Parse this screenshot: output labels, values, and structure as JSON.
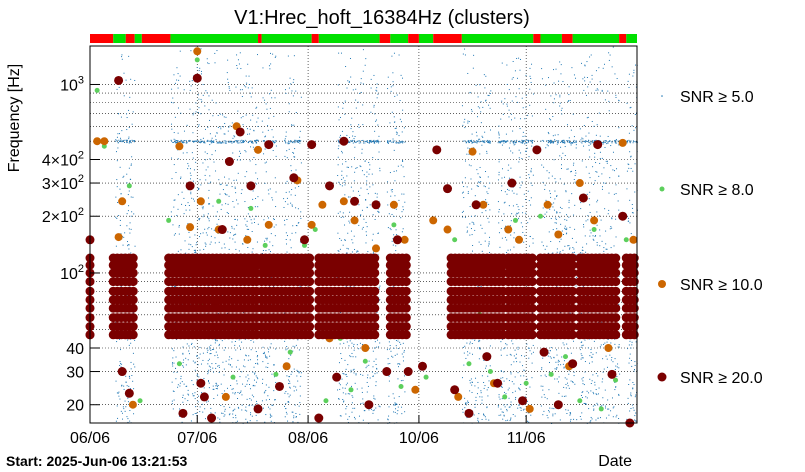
{
  "chart_data": {
    "type": "scatter",
    "title": "V1:Hrec_hoft_16384Hz (clusters)",
    "xlabel": "Date",
    "ylabel": "Frequency [Hz]",
    "ylog": true,
    "ylim": [
      16,
      1600
    ],
    "xlim": [
      0,
      153
    ],
    "x_ticks": [
      {
        "x": 0,
        "label": "06/06"
      },
      {
        "x": 30,
        "label": "07/06"
      },
      {
        "x": 61,
        "label": "08/06"
      },
      {
        "x": 92,
        "label": "10/06"
      },
      {
        "x": 122,
        "label": "11/06"
      }
    ],
    "y_ticks": [
      {
        "value": 20,
        "label": "20"
      },
      {
        "value": 30,
        "label": "30"
      },
      {
        "value": 40,
        "label": "40"
      },
      {
        "value": 100,
        "label": "10",
        "sup": "2"
      },
      {
        "value": 200,
        "label": "2×10",
        "sup": "2"
      },
      {
        "value": 300,
        "label": "3×10",
        "sup": "2"
      },
      {
        "value": 400,
        "label": "4×10",
        "sup": "2"
      },
      {
        "value": 1000,
        "label": "10",
        "sup": "3"
      }
    ],
    "start_label": "Start: 2025-Jun-06 13:21:53",
    "state_segments": [
      {
        "start": 0,
        "end": 6.5,
        "state": "off"
      },
      {
        "start": 6.5,
        "end": 10,
        "state": "on"
      },
      {
        "start": 10,
        "end": 12.5,
        "state": "off"
      },
      {
        "start": 12.5,
        "end": 14.5,
        "state": "on"
      },
      {
        "start": 14.5,
        "end": 22.5,
        "state": "off"
      },
      {
        "start": 22.5,
        "end": 47,
        "state": "on"
      },
      {
        "start": 47,
        "end": 48,
        "state": "off"
      },
      {
        "start": 48,
        "end": 62,
        "state": "on"
      },
      {
        "start": 62,
        "end": 64,
        "state": "off"
      },
      {
        "start": 64,
        "end": 81,
        "state": "on"
      },
      {
        "start": 81,
        "end": 84,
        "state": "off"
      },
      {
        "start": 84,
        "end": 89,
        "state": "on"
      },
      {
        "start": 89,
        "end": 92,
        "state": "off"
      },
      {
        "start": 92,
        "end": 96,
        "state": "on"
      },
      {
        "start": 96,
        "end": 104,
        "state": "off"
      },
      {
        "start": 104,
        "end": 124,
        "state": "on"
      },
      {
        "start": 124,
        "end": 126,
        "state": "off"
      },
      {
        "start": 126,
        "end": 132,
        "state": "on"
      },
      {
        "start": 132,
        "end": 135,
        "state": "off"
      },
      {
        "start": 135,
        "end": 148,
        "state": "on"
      },
      {
        "start": 148,
        "end": 150,
        "state": "off"
      },
      {
        "start": 150,
        "end": 153,
        "state": "on"
      }
    ],
    "series": [
      {
        "name": "SNR ≥ 5.0",
        "color": "#1f77b4",
        "marker": "dot",
        "density": "dense",
        "active_intervals": [
          [
            7,
            12.5
          ],
          [
            22.5,
            34
          ],
          [
            34,
            47
          ],
          [
            48,
            52
          ],
          [
            54,
            59
          ],
          [
            69,
            81
          ],
          [
            83,
            88
          ],
          [
            104,
            112
          ],
          [
            114,
            124
          ],
          [
            126,
            136
          ],
          [
            137,
            148
          ],
          [
            150,
            153
          ]
        ],
        "points": []
      },
      {
        "name": "SNR ≥ 8.0",
        "color": "#5ccf5c",
        "marker": "circle-small",
        "points": [
          [
            2,
            930
          ],
          [
            4,
            470
          ],
          [
            11,
            290
          ],
          [
            14,
            21
          ],
          [
            22,
            190
          ],
          [
            25,
            33
          ],
          [
            30,
            1350
          ],
          [
            31,
            68
          ],
          [
            36,
            240
          ],
          [
            40,
            28
          ],
          [
            45,
            220
          ],
          [
            49,
            140
          ],
          [
            52,
            29
          ],
          [
            56,
            38
          ],
          [
            60,
            140
          ],
          [
            63,
            170
          ],
          [
            66,
            21
          ],
          [
            70,
            45
          ],
          [
            73,
            24
          ],
          [
            77,
            34
          ],
          [
            85,
            180
          ],
          [
            87,
            25
          ],
          [
            94,
            28
          ],
          [
            102,
            150
          ],
          [
            106,
            33
          ],
          [
            109,
            60
          ],
          [
            112,
            30
          ],
          [
            116,
            22
          ],
          [
            119,
            190
          ],
          [
            122,
            26
          ],
          [
            126,
            200
          ],
          [
            129,
            29
          ],
          [
            133,
            36
          ],
          [
            137,
            21
          ],
          [
            141,
            170
          ],
          [
            143,
            19
          ],
          [
            147,
            27
          ],
          [
            150,
            150
          ]
        ]
      },
      {
        "name": "SNR ≥ 10.0",
        "color": "#cc6600",
        "marker": "circle-medium",
        "points": [
          [
            0,
            120
          ],
          [
            2,
            500
          ],
          [
            4,
            500
          ],
          [
            8,
            155
          ],
          [
            9,
            240
          ],
          [
            10,
            90
          ],
          [
            12,
            20
          ],
          [
            25,
            470
          ],
          [
            28,
            175
          ],
          [
            30,
            1500
          ],
          [
            31,
            240
          ],
          [
            33,
            90
          ],
          [
            36,
            170
          ],
          [
            38,
            22
          ],
          [
            41,
            600
          ],
          [
            44,
            150
          ],
          [
            47,
            450
          ],
          [
            50,
            180
          ],
          [
            55,
            32
          ],
          [
            58,
            310
          ],
          [
            62,
            180
          ],
          [
            65,
            230
          ],
          [
            67,
            45
          ],
          [
            71,
            240
          ],
          [
            74,
            190
          ],
          [
            77,
            40
          ],
          [
            80,
            135
          ],
          [
            85,
            230
          ],
          [
            88,
            150
          ],
          [
            91,
            24
          ],
          [
            96,
            190
          ],
          [
            100,
            170
          ],
          [
            103,
            22
          ],
          [
            107,
            440
          ],
          [
            110,
            230
          ],
          [
            113,
            26
          ],
          [
            117,
            170
          ],
          [
            120,
            150
          ],
          [
            123,
            19
          ],
          [
            128,
            230
          ],
          [
            131,
            160
          ],
          [
            134,
            32
          ],
          [
            137,
            300
          ],
          [
            141,
            190
          ],
          [
            145,
            40
          ],
          [
            149,
            490
          ],
          [
            152,
            150
          ]
        ]
      },
      {
        "name": "SNR ≥ 20.0",
        "color": "#7a0000",
        "marker": "circle-large",
        "bands": [
          47,
          52,
          58,
          65,
          72,
          80,
          90,
          100,
          110,
          120
        ],
        "active_intervals": [
          [
            0,
            0.8
          ],
          [
            6.5,
            12.5
          ],
          [
            22,
            47
          ],
          [
            48,
            62
          ],
          [
            64,
            80.5
          ],
          [
            84,
            89
          ],
          [
            101,
            116
          ],
          [
            117,
            124
          ],
          [
            126,
            136
          ],
          [
            137,
            148
          ],
          [
            150,
            153
          ]
        ],
        "points": [
          [
            0,
            150
          ],
          [
            0,
            47
          ],
          [
            8,
            1050
          ],
          [
            9,
            30
          ],
          [
            11,
            23
          ],
          [
            26,
            18
          ],
          [
            28,
            290
          ],
          [
            29,
            100
          ],
          [
            30,
            1080
          ],
          [
            31,
            26
          ],
          [
            32,
            22
          ],
          [
            34,
            17
          ],
          [
            35,
            70
          ],
          [
            37,
            170
          ],
          [
            39,
            390
          ],
          [
            42,
            560
          ],
          [
            45,
            290
          ],
          [
            47,
            19
          ],
          [
            50,
            480
          ],
          [
            53,
            25
          ],
          [
            57,
            320
          ],
          [
            60,
            150
          ],
          [
            62,
            480
          ],
          [
            64,
            17
          ],
          [
            67,
            290
          ],
          [
            69,
            28
          ],
          [
            71,
            500
          ],
          [
            74,
            240
          ],
          [
            78,
            20
          ],
          [
            80,
            230
          ],
          [
            83,
            30
          ],
          [
            86,
            150
          ],
          [
            89,
            30
          ],
          [
            93,
            32
          ],
          [
            97,
            450
          ],
          [
            100,
            280
          ],
          [
            102,
            24
          ],
          [
            106,
            18
          ],
          [
            108,
            230
          ],
          [
            111,
            36
          ],
          [
            114,
            26
          ],
          [
            118,
            300
          ],
          [
            121,
            21
          ],
          [
            125,
            450
          ],
          [
            127,
            38
          ],
          [
            131,
            20
          ],
          [
            135,
            33
          ],
          [
            138,
            250
          ],
          [
            142,
            480
          ],
          [
            146,
            29
          ],
          [
            149,
            200
          ],
          [
            151,
            16
          ]
        ]
      }
    ],
    "legend_placement": "right"
  }
}
